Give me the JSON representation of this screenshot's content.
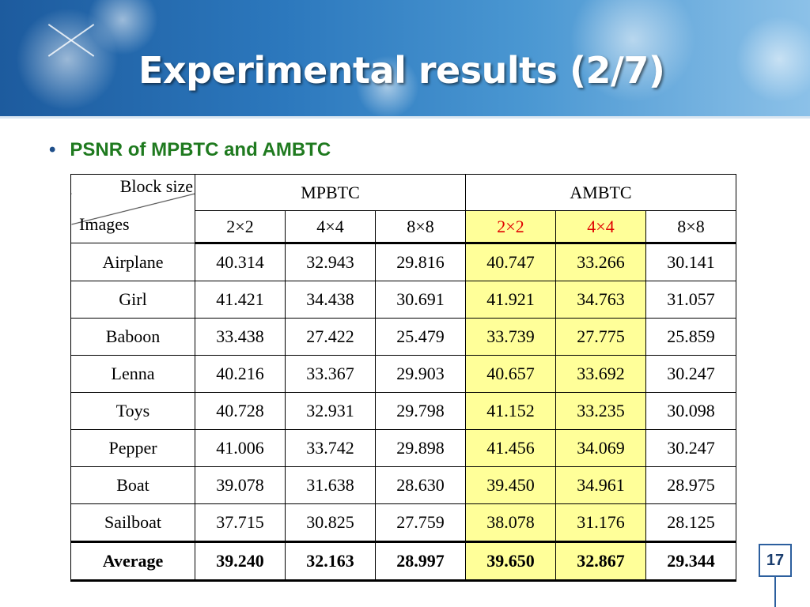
{
  "slide": {
    "title": "Experimental results (2/7)",
    "bullet": "PSNR of MPBTC and AMBTC",
    "page_number": "17"
  },
  "table": {
    "corner_top": "Block size",
    "corner_bottom": "Images",
    "groups": [
      "MPBTC",
      "AMBTC"
    ],
    "subheaders": [
      "2×2",
      "4×4",
      "8×8",
      "2×2",
      "4×4",
      "8×8"
    ],
    "rows": [
      {
        "image": "Airplane",
        "values": [
          "40.314",
          "32.943",
          "29.816",
          "40.747",
          "33.266",
          "30.141"
        ]
      },
      {
        "image": "Girl",
        "values": [
          "41.421",
          "34.438",
          "30.691",
          "41.921",
          "34.763",
          "31.057"
        ]
      },
      {
        "image": "Baboon",
        "values": [
          "33.438",
          "27.422",
          "25.479",
          "33.739",
          "27.775",
          "25.859"
        ]
      },
      {
        "image": "Lenna",
        "values": [
          "40.216",
          "33.367",
          "29.903",
          "40.657",
          "33.692",
          "30.247"
        ]
      },
      {
        "image": "Toys",
        "values": [
          "40.728",
          "32.931",
          "29.798",
          "41.152",
          "33.235",
          "30.098"
        ]
      },
      {
        "image": "Pepper",
        "values": [
          "41.006",
          "33.742",
          "29.898",
          "41.456",
          "34.069",
          "30.247"
        ]
      },
      {
        "image": "Boat",
        "values": [
          "39.078",
          "31.638",
          "28.630",
          "39.450",
          "34.961",
          "28.975"
        ]
      },
      {
        "image": "Sailboat",
        "values": [
          "37.715",
          "30.825",
          "27.759",
          "38.078",
          "31.176",
          "28.125"
        ]
      }
    ],
    "average": {
      "image": "Average",
      "values": [
        "39.240",
        "32.163",
        "28.997",
        "39.650",
        "32.867",
        "29.344"
      ]
    }
  },
  "colors": {
    "title_text": "#ffffff",
    "bullet_text": "#1f7a1f",
    "highlight_fill": "#ffff99",
    "highlight_text": "#e00000",
    "banner_blue": "#2c78bd"
  }
}
